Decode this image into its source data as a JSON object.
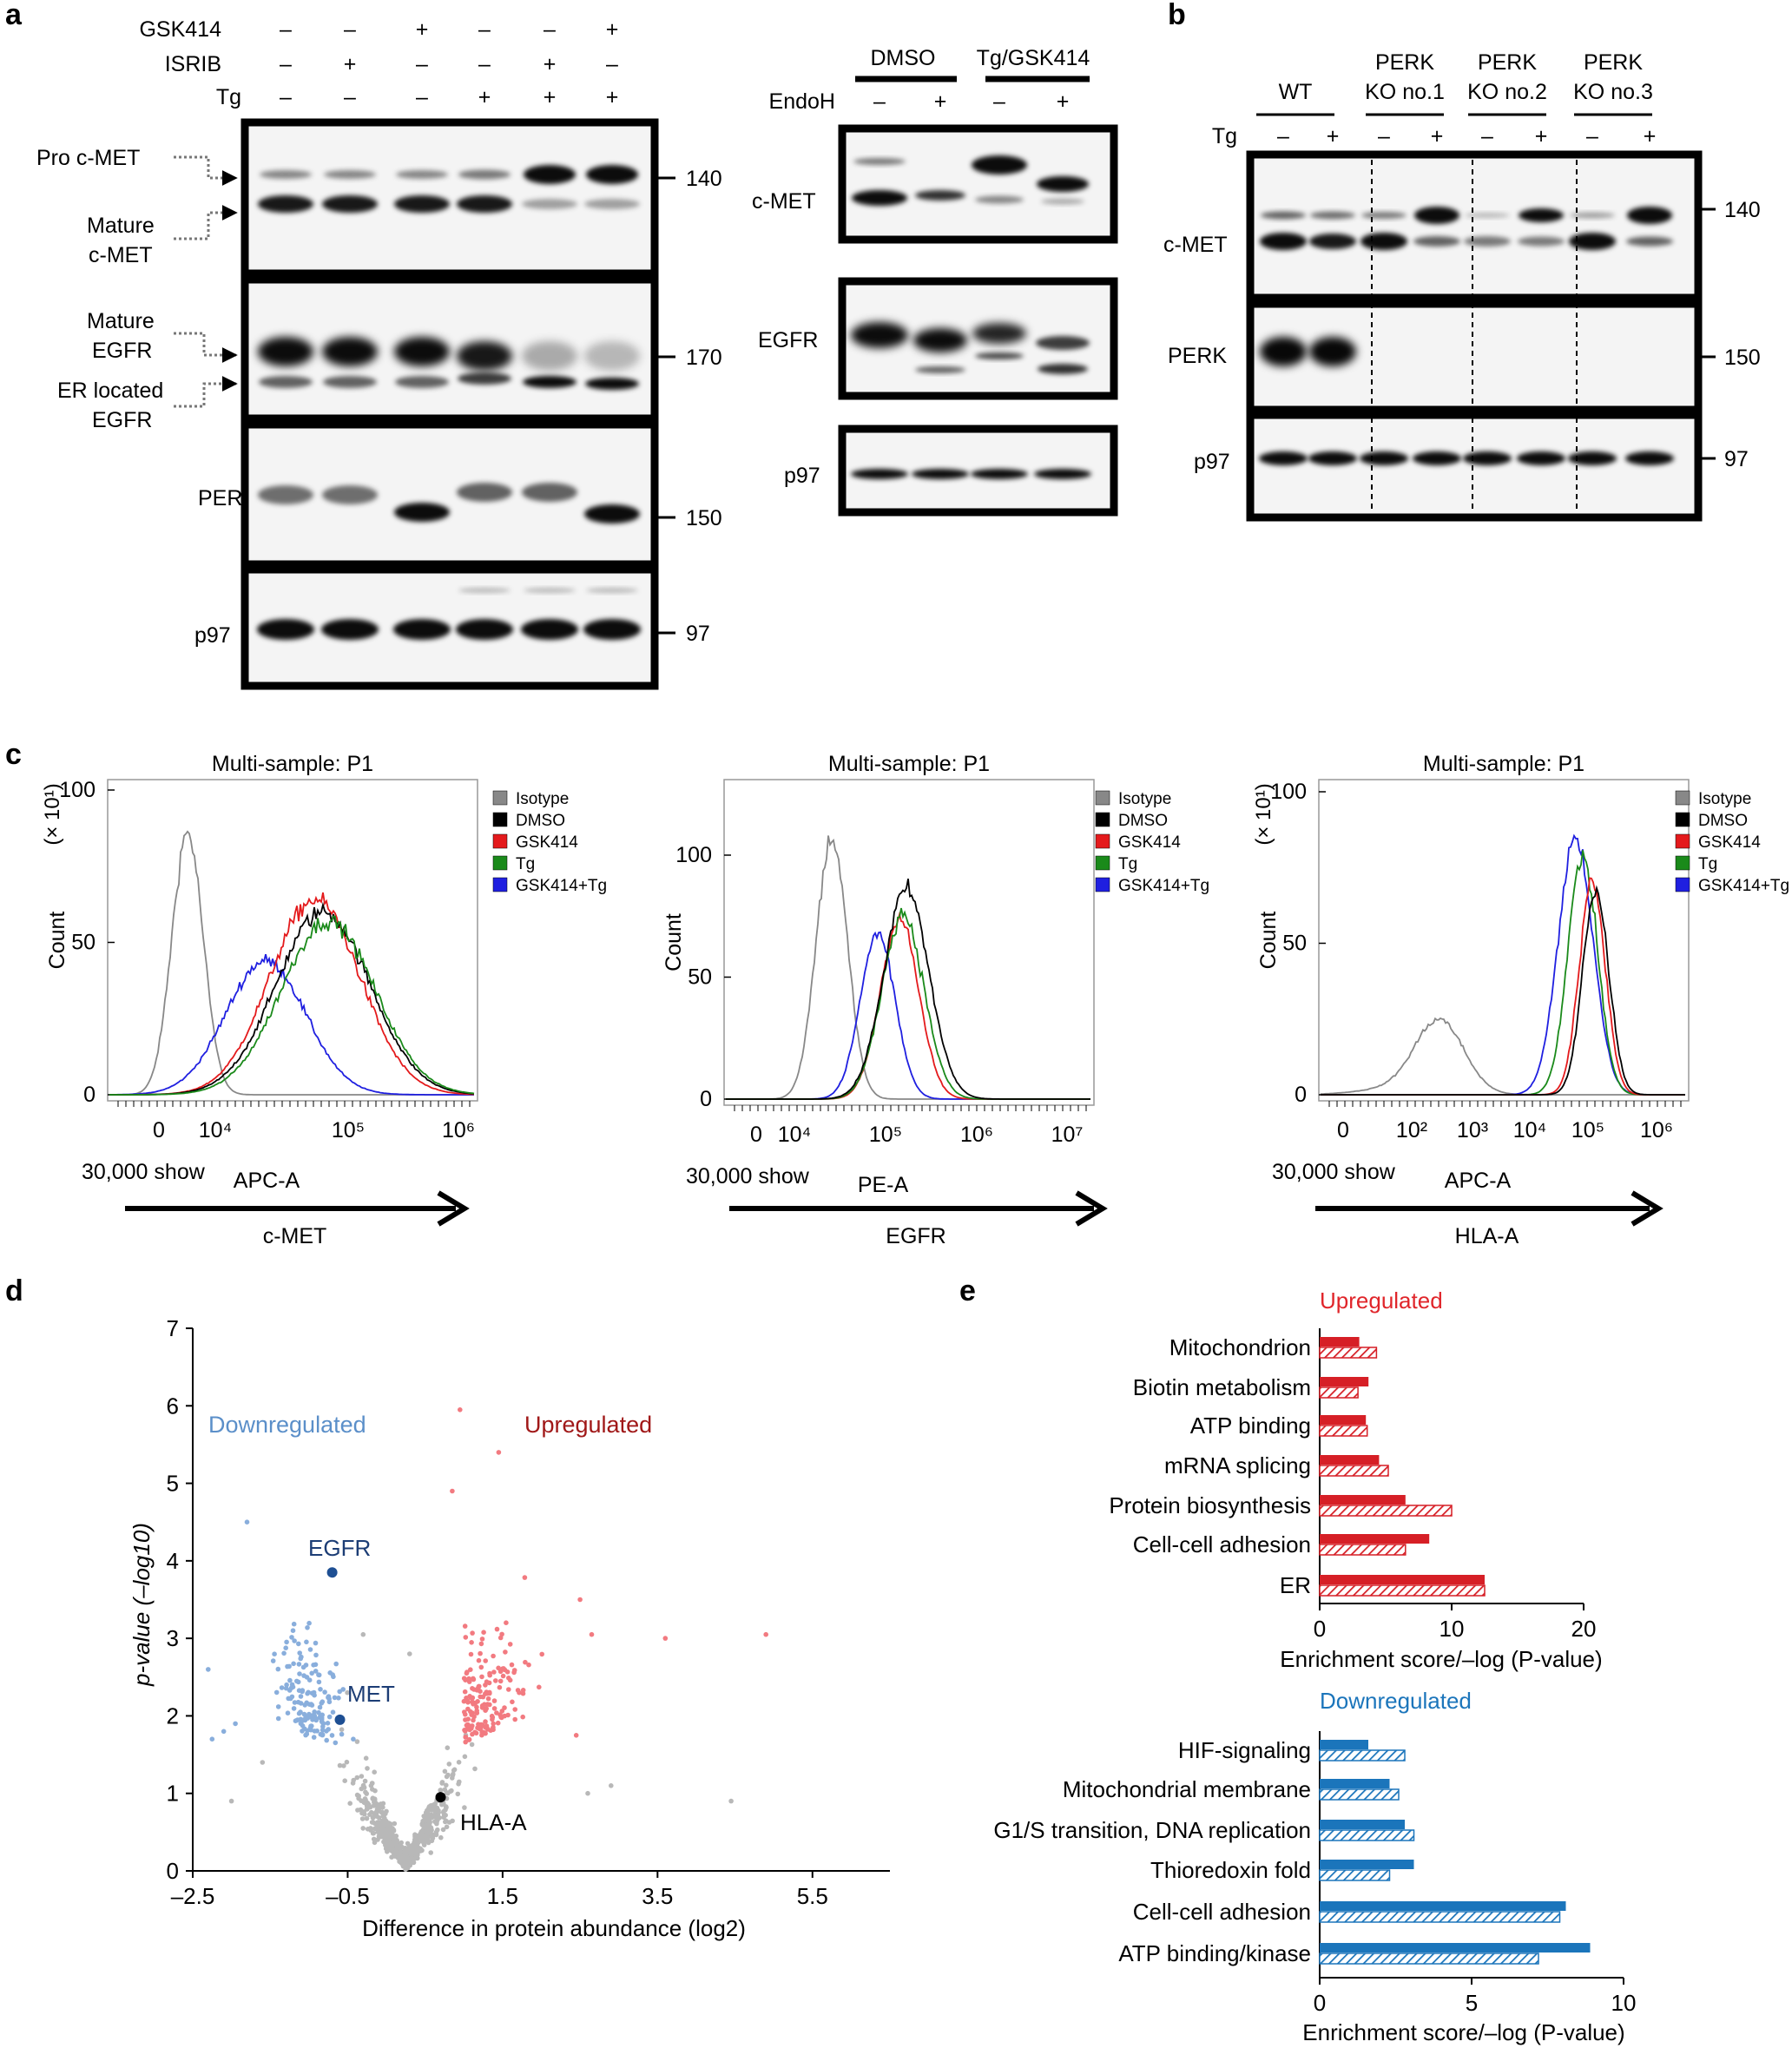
{
  "panels": {
    "a": "a",
    "b": "b",
    "c": "c",
    "d": "d",
    "e": "e"
  },
  "panel_a": {
    "conditions": [
      {
        "label": "GSK414",
        "values": [
          "–",
          "–",
          "+",
          "–",
          "–",
          "+"
        ]
      },
      {
        "label": "ISRIB",
        "values": [
          "–",
          "+",
          "–",
          "–",
          "+",
          "–"
        ]
      },
      {
        "label": "Tg",
        "values": [
          "–",
          "–",
          "–",
          "+",
          "+",
          "+"
        ]
      }
    ],
    "left_labels": {
      "pro_cmet": "Pro c-MET",
      "mature_cmet_1": "Mature",
      "mature_cmet_2": "c-MET",
      "mature_egfr_1": "Mature",
      "mature_egfr_2": "EGFR",
      "er_egfr_1": "ER located",
      "er_egfr_2": "EGFR",
      "perk": "PERK",
      "p97": "p97"
    },
    "mw": [
      "140",
      "170",
      "150",
      "97"
    ],
    "endo": {
      "group1": "DMSO",
      "group2": "Tg/GSK414",
      "endoh_label": "EndoH",
      "endoh_values": [
        "–",
        "+",
        "–",
        "+"
      ],
      "rows": [
        "c-MET",
        "EGFR",
        "p97"
      ]
    }
  },
  "panel_b": {
    "groups": [
      {
        "l1": "",
        "l2": "WT"
      },
      {
        "l1": "PERK",
        "l2": "KO no.1"
      },
      {
        "l1": "PERK",
        "l2": "KO no.2"
      },
      {
        "l1": "PERK",
        "l2": "KO no.3"
      }
    ],
    "tg_label": "Tg",
    "tg_values": [
      "–",
      "+",
      "–",
      "+",
      "–",
      "+",
      "–",
      "+"
    ],
    "rows": [
      "c-MET",
      "PERK",
      "p97"
    ],
    "mw": [
      "140",
      "150",
      "97"
    ]
  },
  "panel_c": {
    "plots": [
      {
        "title": "Multi-sample: P1",
        "ylabel": "Count",
        "yexp": "(× 10¹)",
        "yticks": [
          "0",
          "50",
          "100"
        ],
        "xticks": [
          "0",
          "10⁴",
          "10⁵",
          "10⁶"
        ],
        "xlabel": "APC-A",
        "show": "30,000 show",
        "marker": "c-MET"
      },
      {
        "title": "Multi-sample: P1",
        "ylabel": "Count",
        "yexp": "",
        "yticks": [
          "0",
          "50",
          "100"
        ],
        "xticks": [
          "0",
          "10⁴",
          "10⁵",
          "10⁶",
          "10⁷"
        ],
        "xlabel": "PE-A",
        "show": "30,000 show",
        "marker": "EGFR"
      },
      {
        "title": "Multi-sample: P1",
        "ylabel": "Count",
        "yexp": "(× 10¹)",
        "yticks": [
          "0",
          "50",
          "100"
        ],
        "xticks": [
          "0",
          "10²",
          "10³",
          "10⁴",
          "10⁵",
          "10⁶"
        ],
        "xlabel": "APC-A",
        "show": "30,000 show",
        "marker": "HLA-A"
      }
    ],
    "legend": [
      {
        "name": "Isotype",
        "color": "#888888"
      },
      {
        "name": "DMSO",
        "color": "#000000"
      },
      {
        "name": "GSK414",
        "color": "#e41a1c"
      },
      {
        "name": "Tg",
        "color": "#1a8a1a"
      },
      {
        "name": "GSK414+Tg",
        "color": "#1f1fe0"
      }
    ]
  },
  "panel_e_text": {
    "up_title": "Upregulated",
    "down_title": "Downregulated",
    "up_xlabel": "Enrichment score/–log (P-value)",
    "down_xlabel": "Enrichment score/–log (P-value)"
  },
  "chart_data": [
    {
      "type": "scatter",
      "title": "",
      "xlabel": "Difference in protein abundance (log2)",
      "ylabel": "p-value (–log10)",
      "xlim": [
        -2.5,
        6.5
      ],
      "ylim": [
        0,
        7
      ],
      "xticks": [
        -2.5,
        -0.5,
        1.5,
        3.5,
        5.5
      ],
      "xtick_labels": [
        "–2.5",
        "–0.5",
        "1.5",
        "3.5",
        "5.5"
      ],
      "yticks": [
        0,
        1,
        2,
        3,
        4,
        5,
        6,
        7
      ],
      "group_labels": {
        "down": "Downregulated",
        "up": "Upregulated"
      },
      "highlights": [
        {
          "label": "EGFR",
          "x": -0.7,
          "y": 3.85
        },
        {
          "label": "MET",
          "x": -0.6,
          "y": 1.95
        },
        {
          "label": "HLA-A",
          "x": 0.7,
          "y": 0.95
        }
      ]
    },
    {
      "type": "bar",
      "title": "Upregulated",
      "categories": [
        "Mitochondrion",
        "Biotin metabolism",
        "ATP binding",
        "mRNA splicing",
        "Protein biosynthesis",
        "Cell-cell adhesion",
        "ER"
      ],
      "series": [
        {
          "name": "enrichment score",
          "values": [
            3.0,
            3.7,
            3.5,
            4.5,
            6.5,
            8.3,
            12.5
          ]
        },
        {
          "name": "–log (P-value)",
          "values": [
            4.3,
            2.9,
            3.6,
            5.2,
            10.0,
            6.5,
            12.5
          ]
        }
      ],
      "xlabel": "Enrichment score/–log (P-value)",
      "xlim": [
        0,
        20
      ],
      "xticks": [
        0,
        10,
        20
      ]
    },
    {
      "type": "bar",
      "title": "Downregulated",
      "categories": [
        "HIF-signaling",
        "Mitochondrial membrane",
        "G1/S transition, DNA replication",
        "Thioredoxin fold",
        "Cell-cell adhesion",
        "ATP binding/kinase"
      ],
      "series": [
        {
          "name": "enrichment score",
          "values": [
            1.6,
            2.3,
            2.8,
            3.1,
            8.1,
            8.9
          ]
        },
        {
          "name": "–log (P-value)",
          "values": [
            2.8,
            2.6,
            3.1,
            2.3,
            7.9,
            7.2
          ]
        }
      ],
      "xlabel": "Enrichment score/–log (P-value)",
      "xlim": [
        0,
        10
      ],
      "xticks": [
        0,
        5,
        10
      ]
    }
  ]
}
